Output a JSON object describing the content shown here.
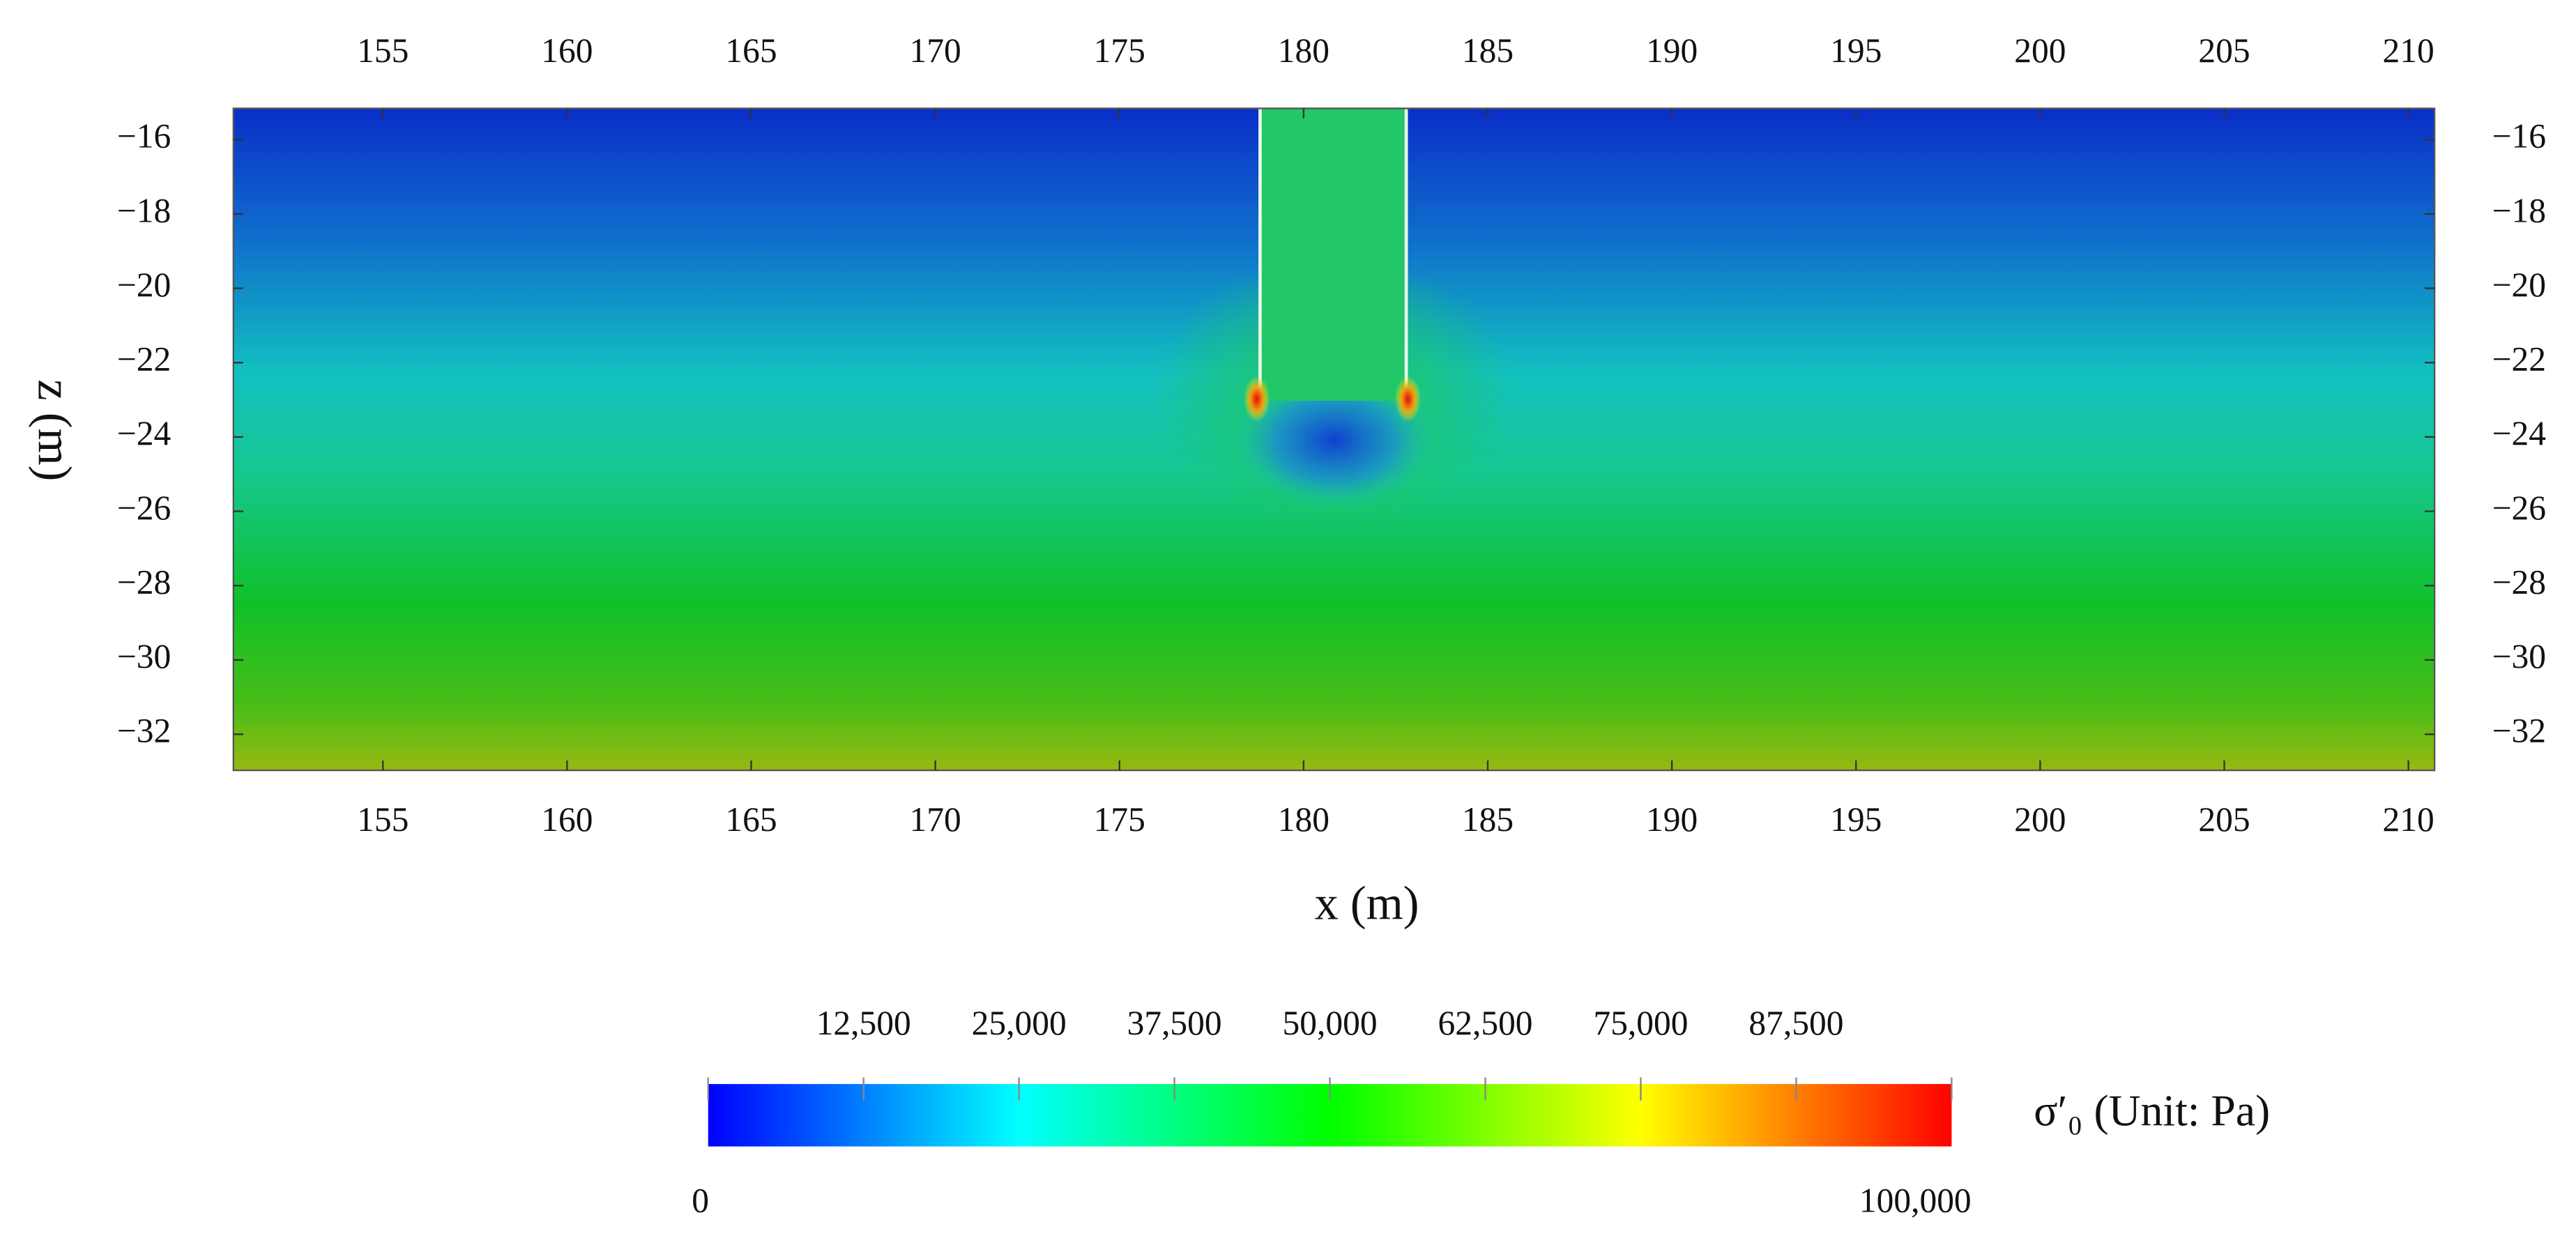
{
  "chart_data": {
    "type": "heatmap",
    "xlabel": "x (m)",
    "ylabel": "z (m)",
    "xlim": [
      150.94,
      210.71
    ],
    "ylim": [
      -32.97,
      -15.16
    ],
    "xticks": [
      155,
      160,
      165,
      170,
      175,
      180,
      185,
      190,
      195,
      200,
      205,
      210
    ],
    "yticks": [
      {
        "value": -16,
        "label": "−16"
      },
      {
        "value": -18,
        "label": "−18"
      },
      {
        "value": -20,
        "label": "−20"
      },
      {
        "value": -22,
        "label": "−22"
      },
      {
        "value": -24,
        "label": "−24"
      },
      {
        "value": -26,
        "label": "−26"
      },
      {
        "value": -28,
        "label": "−28"
      },
      {
        "value": -30,
        "label": "−30"
      },
      {
        "value": -32,
        "label": "−32"
      }
    ],
    "colorbar": {
      "label": "σ′₀  (Unit: Pa)",
      "lim": [
        0,
        100000
      ],
      "ticks": [
        0,
        {
          "value": 12500,
          "label": "12,500"
        },
        {
          "value": 25000,
          "label": "25,000"
        },
        {
          "value": 37500,
          "label": "37,500"
        },
        {
          "value": 50000,
          "label": "50,000"
        },
        {
          "value": 62500,
          "label": "62,500"
        },
        {
          "value": 75000,
          "label": "75,000"
        },
        {
          "value": 87500,
          "label": "87,500"
        },
        {
          "value": 100000,
          "label": "100,000"
        }
      ],
      "colormap": [
        "#0000ff",
        "#00ffff",
        "#00ff00",
        "#ffff00",
        "#ff0000"
      ]
    }
  }
}
